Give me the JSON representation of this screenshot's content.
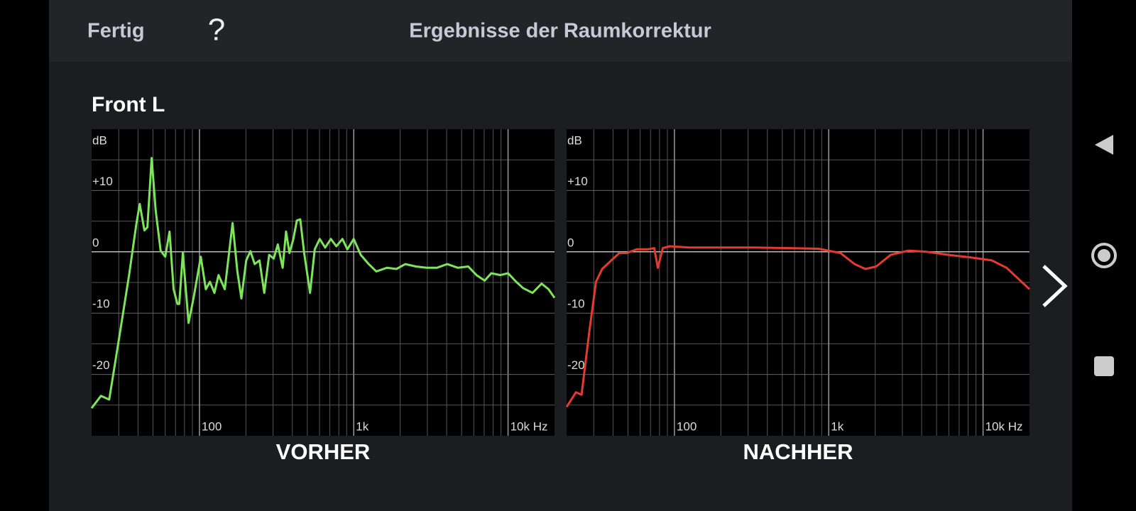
{
  "header": {
    "done": "Fertig",
    "help": "?",
    "title": "Ergebnisse der Raumkorrektur"
  },
  "section_title": "Front L",
  "chart_data": [
    {
      "type": "line",
      "title": "VORHER",
      "ylabel": "dB",
      "xlog": true,
      "grid": true,
      "xlim": [
        20,
        20000
      ],
      "ylim": [
        -30,
        20
      ],
      "xticks": [
        100,
        {
          "value": 1000,
          "label": "1k"
        },
        {
          "value": 10000,
          "label": "10k Hz"
        }
      ],
      "yticks": [
        {
          "value": 10,
          "label": "+10"
        },
        0,
        -10,
        -20
      ],
      "xminor": [
        30,
        40,
        50,
        60,
        70,
        80,
        90,
        200,
        300,
        400,
        500,
        600,
        700,
        800,
        900,
        2000,
        3000,
        4000,
        5000,
        6000,
        7000,
        8000,
        9000
      ],
      "yminor": [
        15,
        5,
        -5,
        -15,
        -25
      ],
      "x": [
        20,
        23,
        26,
        30,
        35,
        39,
        41,
        44,
        46,
        49,
        52,
        56,
        60,
        64,
        68,
        72,
        74,
        78,
        85,
        92,
        102,
        110,
        117,
        125,
        133,
        146,
        164,
        176,
        187,
        201,
        214,
        228,
        245,
        263,
        283,
        303,
        322,
        346,
        364,
        383,
        406,
        428,
        450,
        477,
        521,
        559,
        602,
        653,
        711,
        771,
        845,
        909,
        1000,
        1110,
        1250,
        1400,
        1640,
        1890,
        2160,
        2530,
        2960,
        3460,
        4030,
        4730,
        5520,
        6240,
        7050,
        7780,
        8920,
        10000,
        11300,
        12500,
        14400,
        16500,
        18300,
        20000
      ],
      "series": [
        {
          "color": "#7ee55b",
          "values": [
            -25.5,
            -23.5,
            -24.1,
            -14.4,
            -3.8,
            4.5,
            7.8,
            3.5,
            4.0,
            15.3,
            6.8,
            0.2,
            -0.8,
            3.3,
            -6.1,
            -8.5,
            -8.5,
            -0.2,
            -11.6,
            -7.3,
            -0.8,
            -6.1,
            -4.9,
            -6.7,
            -3.8,
            -6.1,
            4.7,
            -3.2,
            -7.6,
            -1.4,
            0.1,
            -2.0,
            -1.4,
            -6.7,
            -0.5,
            -1.1,
            1.2,
            -2.6,
            3.3,
            -0.2,
            2.1,
            5.1,
            5.3,
            -0.2,
            -6.7,
            0.4,
            2.1,
            0.7,
            2.1,
            0.9,
            2.1,
            0.4,
            2.1,
            -0.5,
            -2.0,
            -3.2,
            -2.6,
            -2.8,
            -2.0,
            -2.4,
            -2.6,
            -2.6,
            -2.0,
            -2.6,
            -2.4,
            -3.8,
            -4.7,
            -3.5,
            -3.8,
            -3.5,
            -4.9,
            -5.9,
            -6.7,
            -5.2,
            -6.1,
            -7.5
          ]
        }
      ]
    },
    {
      "type": "line",
      "title": "NACHHER",
      "ylabel": "dB",
      "xlog": true,
      "grid": true,
      "xlim": [
        20,
        20000
      ],
      "ylim": [
        -30,
        20
      ],
      "xticks": [
        100,
        {
          "value": 1000,
          "label": "1k"
        },
        {
          "value": 10000,
          "label": "10k Hz"
        }
      ],
      "yticks": [
        {
          "value": 10,
          "label": "+10"
        },
        0,
        -10,
        -20
      ],
      "xminor": [
        30,
        40,
        50,
        60,
        70,
        80,
        90,
        200,
        300,
        400,
        500,
        600,
        700,
        800,
        900,
        2000,
        3000,
        4000,
        5000,
        6000,
        7000,
        8000,
        9000
      ],
      "yminor": [
        15,
        5,
        -5,
        -15,
        -25
      ],
      "x": [
        20,
        23,
        25,
        28,
        31,
        34,
        39,
        44,
        49,
        57,
        67,
        74,
        78,
        84,
        93,
        125,
        193,
        330,
        560,
        860,
        1190,
        1470,
        1730,
        2030,
        2520,
        3290,
        4310,
        5970,
        8250,
        11400,
        14200,
        20000
      ],
      "series": [
        {
          "color": "#e53a2e",
          "values": [
            -25.3,
            -22.9,
            -23.3,
            -13.2,
            -4.9,
            -2.8,
            -1.4,
            -0.2,
            -0.2,
            0.4,
            0.4,
            0.6,
            -2.6,
            0.6,
            0.9,
            0.7,
            0.7,
            0.7,
            0.6,
            0.5,
            -0.2,
            -2.0,
            -2.8,
            -2.4,
            -0.5,
            0.2,
            0.0,
            -0.5,
            -0.9,
            -1.4,
            -2.6,
            -6.1
          ]
        }
      ]
    }
  ]
}
